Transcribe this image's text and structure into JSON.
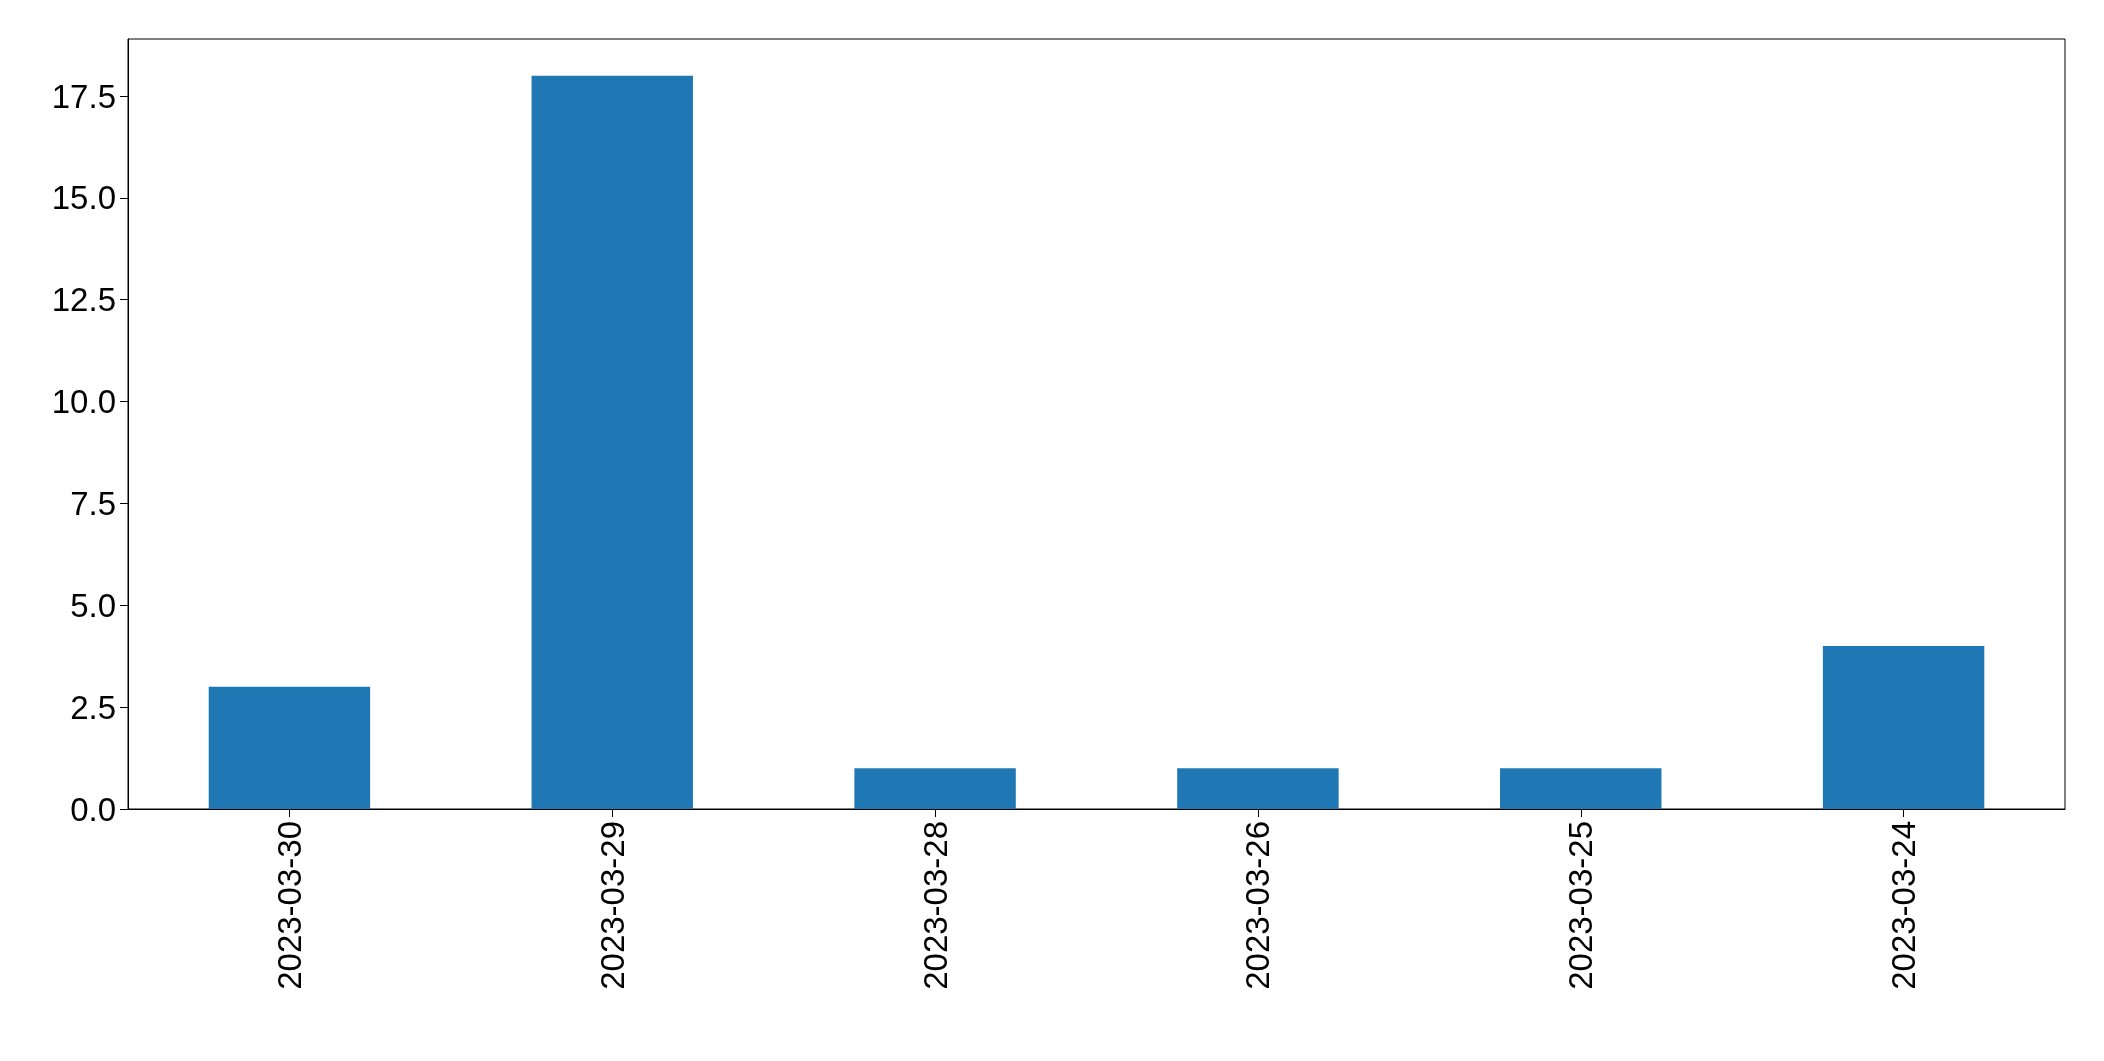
{
  "chart_data": {
    "type": "bar",
    "categories": [
      "2023-03-30",
      "2023-03-29",
      "2023-03-28",
      "2023-03-26",
      "2023-03-25",
      "2023-03-24"
    ],
    "values": [
      3,
      18,
      1,
      1,
      1,
      4
    ],
    "color": "#1f77b4",
    "ylim": [
      0,
      18.9
    ],
    "yticks": [
      {
        "value": 0,
        "label": "0.0"
      },
      2.5,
      {
        "value": 5,
        "label": "5.0"
      },
      7.5,
      {
        "value": 10,
        "label": "10.0"
      },
      12.5,
      {
        "value": 15,
        "label": "15.0"
      },
      17.5
    ]
  }
}
